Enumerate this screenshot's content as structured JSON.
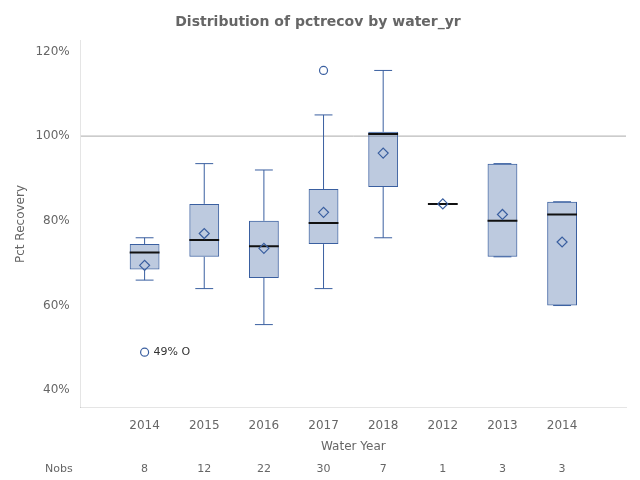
{
  "chart_data": {
    "type": "box",
    "title": "Distribution of pctrecov by water_yr",
    "xlabel": "Water Year",
    "ylabel": "Pct Recovery",
    "categories": [
      "2014",
      "2015",
      "2016",
      "2017",
      "2018",
      "2012",
      "2013",
      "2014"
    ],
    "nobs_label": "Nobs",
    "nobs": [
      8,
      12,
      22,
      30,
      7,
      1,
      3,
      3
    ],
    "boxes": [
      {
        "q1": 0.685,
        "median": 0.725,
        "q3": 0.745,
        "mean": 0.695,
        "whislo": 0.66,
        "whishi": 0.76,
        "fliers": [
          0.49
        ]
      },
      {
        "q1": 0.715,
        "median": 0.755,
        "q3": 0.84,
        "mean": 0.77,
        "whislo": 0.64,
        "whishi": 0.935,
        "fliers": []
      },
      {
        "q1": 0.665,
        "median": 0.74,
        "q3": 0.8,
        "mean": 0.735,
        "whislo": 0.555,
        "whishi": 0.92,
        "fliers": []
      },
      {
        "q1": 0.745,
        "median": 0.795,
        "q3": 0.875,
        "mean": 0.82,
        "whislo": 0.64,
        "whishi": 1.05,
        "fliers": [
          1.155
        ]
      },
      {
        "q1": 0.88,
        "median": 1.005,
        "q3": 1.01,
        "mean": 0.96,
        "whislo": 0.76,
        "whishi": 1.155,
        "fliers": []
      },
      {
        "q1": 0.84,
        "median": 0.84,
        "q3": 0.84,
        "mean": 0.84,
        "whislo": 0.84,
        "whishi": 0.84,
        "fliers": []
      },
      {
        "q1": 0.715,
        "median": 0.8,
        "q3": 0.935,
        "mean": 0.815,
        "whislo": 0.715,
        "whishi": 0.935,
        "fliers": []
      },
      {
        "q1": 0.6,
        "median": 0.815,
        "q3": 0.845,
        "mean": 0.75,
        "whislo": 0.6,
        "whishi": 0.845,
        "fliers": []
      }
    ],
    "ylim": [
      0.36,
      1.225
    ],
    "yticks": [
      {
        "value": 0.4,
        "label": "40%"
      },
      {
        "value": 0.6,
        "label": "60%"
      },
      {
        "value": 0.8,
        "label": "80%"
      },
      {
        "value": 1.0,
        "label": "100%"
      },
      {
        "value": 1.2,
        "label": "120%"
      }
    ],
    "hline": 1.0,
    "annotations": [
      {
        "text": "49% O",
        "y": 0.49
      }
    ],
    "color": "#3a5fa0",
    "grid": false
  }
}
